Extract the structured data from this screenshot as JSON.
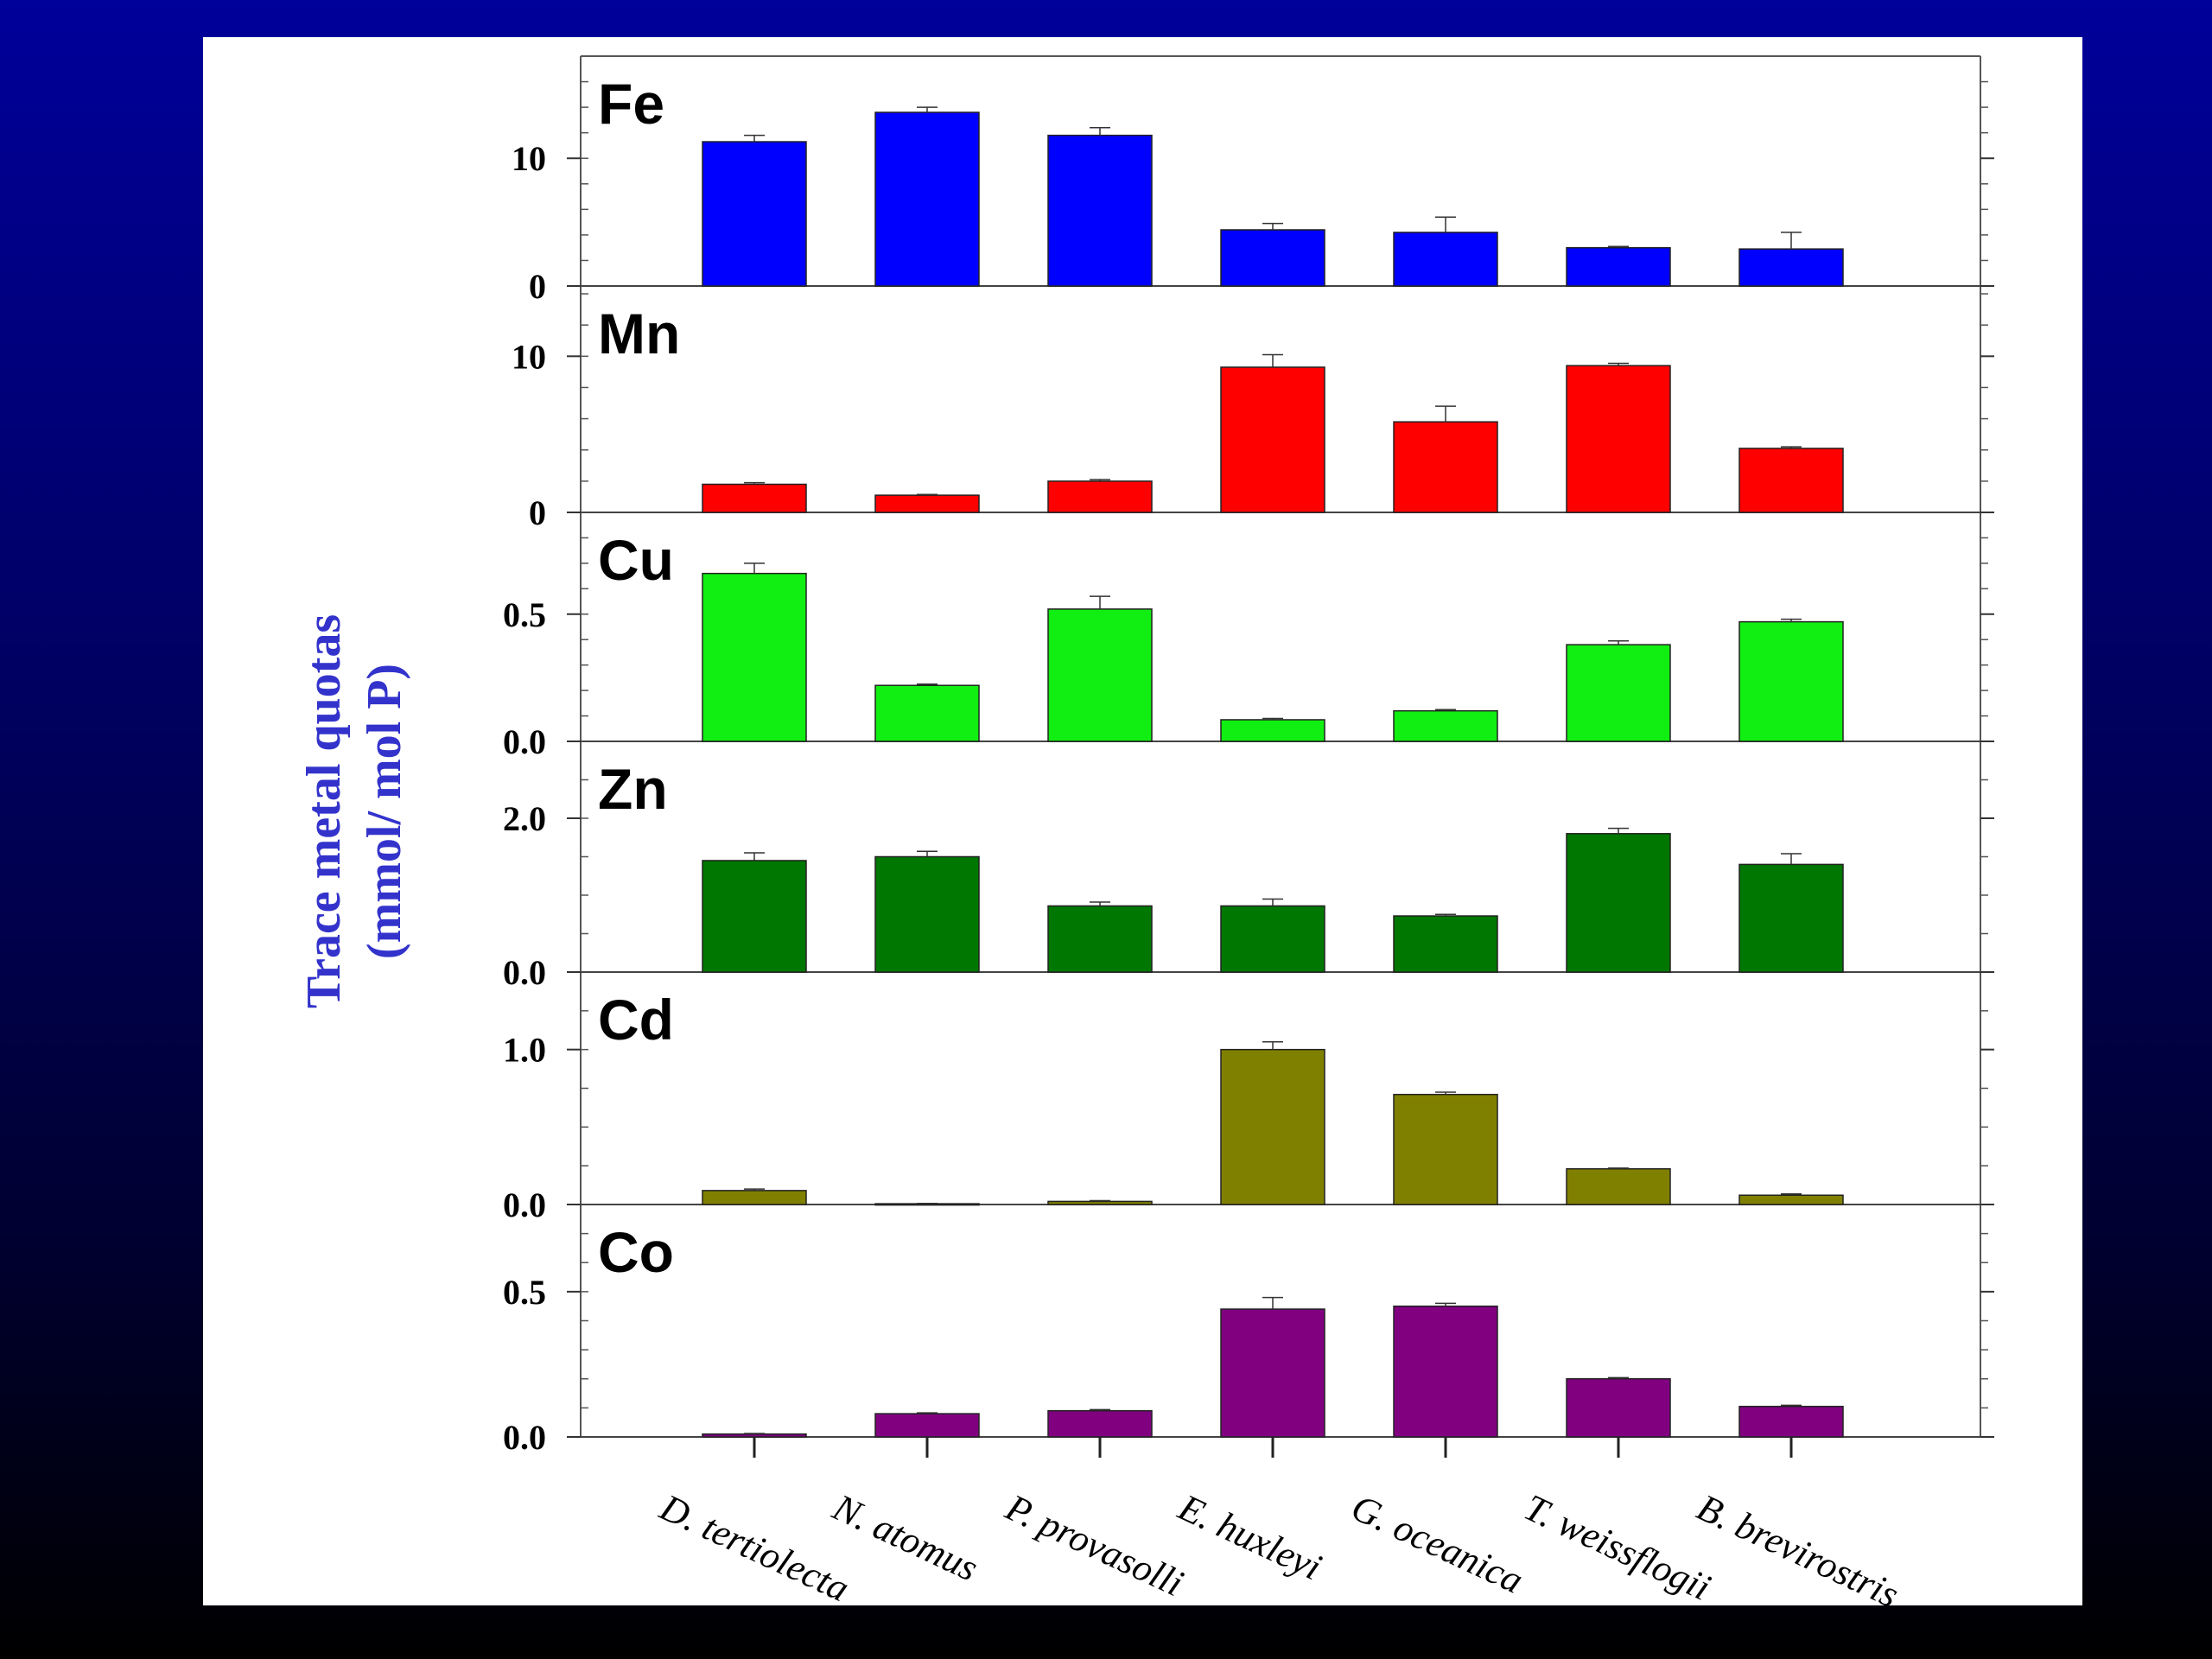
{
  "chart_data": {
    "type": "bar",
    "ylabel_lines": [
      "Trace metal quotas",
      "(mmol/ mol P)"
    ],
    "ylabel_color": "#3333cc",
    "categories": [
      "D. tertiolecta",
      "N. atomus",
      "P. provasolli",
      "E. huxleyi",
      "G. oceanica",
      "T. weissflogii",
      "B. brevirostris"
    ],
    "panels": [
      {
        "metal": "Fe",
        "color": "#0000ff",
        "ylim": [
          0,
          18
        ],
        "yticks": [
          "0",
          "10"
        ],
        "ytick_values": [
          0,
          10
        ],
        "minor_step": 2,
        "values": [
          11.3,
          13.6,
          11.8,
          4.4,
          4.2,
          3.0,
          2.9
        ],
        "errors": [
          0.5,
          0.4,
          0.6,
          0.5,
          1.2,
          0.1,
          1.3
        ]
      },
      {
        "metal": "Mn",
        "color": "#ff0000",
        "ylim": [
          0,
          14.5
        ],
        "yticks": [
          "0",
          "10"
        ],
        "ytick_values": [
          0,
          10
        ],
        "minor_step": 2,
        "values": [
          1.8,
          1.1,
          2.0,
          9.3,
          5.8,
          9.4,
          4.1
        ],
        "errors": [
          0.1,
          0.05,
          0.1,
          0.8,
          1.0,
          0.15,
          0.1
        ]
      },
      {
        "metal": "Cu",
        "color": "#11ee11",
        "ylim": [
          0,
          0.9
        ],
        "yticks": [
          "0.0",
          "0.5"
        ],
        "ytick_values": [
          0,
          0.5
        ],
        "minor_step": 0.1,
        "values": [
          0.66,
          0.22,
          0.52,
          0.085,
          0.12,
          0.38,
          0.47
        ],
        "errors": [
          0.04,
          0.005,
          0.05,
          0.005,
          0.005,
          0.015,
          0.01
        ]
      },
      {
        "metal": "Zn",
        "color": "#007700",
        "ylim": [
          0,
          3.0
        ],
        "yticks": [
          "0.0",
          "2.0"
        ],
        "ytick_values": [
          0,
          2
        ],
        "minor_step": 0.5,
        "values": [
          1.45,
          1.5,
          0.86,
          0.86,
          0.73,
          1.8,
          1.4
        ],
        "errors": [
          0.1,
          0.07,
          0.05,
          0.09,
          0.02,
          0.07,
          0.14
        ]
      },
      {
        "metal": "Cd",
        "color": "#808000",
        "ylim": [
          0,
          1.5
        ],
        "yticks": [
          "0.0",
          "1.0"
        ],
        "ytick_values": [
          0,
          1
        ],
        "minor_step": 0.25,
        "values": [
          0.09,
          0.005,
          0.02,
          1.0,
          0.71,
          0.23,
          0.06
        ],
        "errors": [
          0.01,
          0.002,
          0.005,
          0.05,
          0.015,
          0.005,
          0.008
        ]
      },
      {
        "metal": "Co",
        "color": "#800080",
        "ylim": [
          0,
          0.8
        ],
        "yticks": [
          "0.0",
          "0.5"
        ],
        "ytick_values": [
          0,
          0.5
        ],
        "minor_step": 0.1,
        "values": [
          0.01,
          0.08,
          0.09,
          0.44,
          0.45,
          0.2,
          0.105
        ],
        "errors": [
          0.002,
          0.003,
          0.004,
          0.04,
          0.01,
          0.004,
          0.004
        ]
      }
    ]
  }
}
